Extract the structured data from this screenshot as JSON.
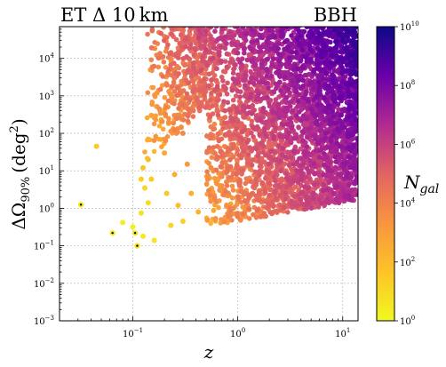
{
  "chart_data": {
    "type": "scatter",
    "title_left": "ET Δ 10 km",
    "title_right": "BBH",
    "xlabel": "z",
    "ylabel_main": "ΔΩ",
    "ylabel_sub": "90%",
    "ylabel_unit": "(deg",
    "ylabel_unit_sup": "2",
    "ylabel_unit_close": ")",
    "x_scale": "log",
    "y_scale": "log",
    "xlim": [
      0.02,
      14
    ],
    "ylim": [
      0.001,
      70000
    ],
    "grid": true,
    "x_ticks": [
      {
        "value": 0.1,
        "base": "10",
        "exp": "−1"
      },
      {
        "value": 1,
        "base": "10",
        "exp": "0"
      },
      {
        "value": 10,
        "base": "10",
        "exp": "1"
      }
    ],
    "y_ticks": [
      {
        "value": 0.001,
        "base": "10",
        "exp": "−3"
      },
      {
        "value": 0.01,
        "base": "10",
        "exp": "−2"
      },
      {
        "value": 0.1,
        "base": "10",
        "exp": "−1"
      },
      {
        "value": 1,
        "base": "10",
        "exp": "0"
      },
      {
        "value": 10,
        "base": "10",
        "exp": "1"
      },
      {
        "value": 100,
        "base": "10",
        "exp": "2"
      },
      {
        "value": 1000,
        "base": "10",
        "exp": "3"
      },
      {
        "value": 10000,
        "base": "10",
        "exp": "4"
      }
    ],
    "colorbar": {
      "label": "N",
      "label_sub": "gal",
      "scale": "log",
      "range": [
        1,
        10000000000
      ],
      "colormap": "plasma_r",
      "colors": [
        "#f0f921",
        "#fdc328",
        "#f89540",
        "#e16462",
        "#b12a90",
        "#6a00a8",
        "#0d0887"
      ],
      "ticks": [
        {
          "value": 1,
          "base": "10",
          "exp": "0"
        },
        {
          "value": 100,
          "base": "10",
          "exp": "2"
        },
        {
          "value": 10000,
          "base": "10",
          "exp": "4"
        },
        {
          "value": 1000000,
          "base": "10",
          "exp": "6"
        },
        {
          "value": 100000000,
          "base": "10",
          "exp": "8"
        },
        {
          "value": 10000000000,
          "base": "10",
          "exp": "10"
        }
      ]
    },
    "marker_color": "#000000",
    "highlighted_points": [
      {
        "x": 0.032,
        "y": 1.25,
        "n_gal": 3
      },
      {
        "x": 0.064,
        "y": 0.22,
        "n_gal": 3
      },
      {
        "x": 0.105,
        "y": 0.22,
        "n_gal": 4
      },
      {
        "x": 0.11,
        "y": 0.1,
        "n_gal": 4
      }
    ],
    "points": [
      {
        "x": 0.045,
        "y": 45,
        "n_gal": 30
      },
      {
        "x": 0.08,
        "y": 0.42,
        "n_gal": 2
      },
      {
        "x": 0.1,
        "y": 0.32,
        "n_gal": 2
      },
      {
        "x": 0.125,
        "y": 0.18,
        "n_gal": 3
      },
      {
        "x": 0.16,
        "y": 0.14,
        "n_gal": 4
      },
      {
        "x": 0.12,
        "y": 0.75,
        "n_gal": 5
      },
      {
        "x": 0.14,
        "y": 1.4,
        "n_gal": 8
      },
      {
        "x": 0.13,
        "y": 3.5,
        "n_gal": 12
      },
      {
        "x": 0.15,
        "y": 6,
        "n_gal": 30
      },
      {
        "x": 0.12,
        "y": 6,
        "n_gal": 20
      },
      {
        "x": 0.125,
        "y": 12,
        "n_gal": 60
      },
      {
        "x": 0.14,
        "y": 20,
        "n_gal": 100
      },
      {
        "x": 0.14,
        "y": 70,
        "n_gal": 300
      },
      {
        "x": 0.15,
        "y": 300,
        "n_gal": 800
      },
      {
        "x": 0.17,
        "y": 1200,
        "n_gal": 2000
      },
      {
        "x": 0.2,
        "y": 30,
        "n_gal": 500
      },
      {
        "x": 0.21,
        "y": 2.5,
        "n_gal": 40
      },
      {
        "x": 0.23,
        "y": 0.35,
        "n_gal": 15
      },
      {
        "x": 0.3,
        "y": 0.45,
        "n_gal": 20
      },
      {
        "x": 0.27,
        "y": 1.2,
        "n_gal": 60
      },
      {
        "x": 0.25,
        "y": 8,
        "n_gal": 300
      },
      {
        "x": 0.22,
        "y": 200,
        "n_gal": 3000
      },
      {
        "x": 0.25,
        "y": 3000,
        "n_gal": 20000
      },
      {
        "x": 0.3,
        "y": 100,
        "n_gal": 5000
      },
      {
        "x": 0.33,
        "y": 15,
        "n_gal": 1500
      },
      {
        "x": 0.36,
        "y": 2.5,
        "n_gal": 300
      },
      {
        "x": 0.42,
        "y": 0.8,
        "n_gal": 200
      },
      {
        "x": 0.28,
        "y": 25000,
        "n_gal": 100000
      }
    ]
  }
}
